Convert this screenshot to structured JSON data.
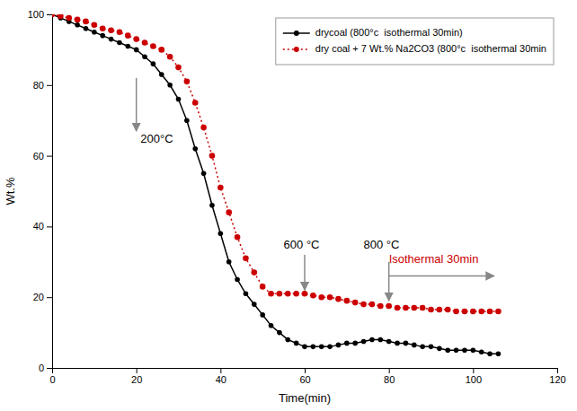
{
  "chart_data": {
    "type": "line",
    "xlabel": "Time(min)",
    "ylabel": "Wt.%",
    "xlim": [
      0,
      120
    ],
    "ylim": [
      0,
      100
    ],
    "xticks": [
      0,
      20,
      40,
      60,
      80,
      100,
      120
    ],
    "yticks": [
      0,
      20,
      40,
      60,
      80,
      100
    ],
    "grid": false,
    "legend": "upper right",
    "x": [
      0,
      2,
      4,
      6,
      8,
      10,
      12,
      14,
      16,
      18,
      20,
      22,
      24,
      26,
      28,
      30,
      32,
      34,
      36,
      38,
      40,
      42,
      44,
      46,
      48,
      50,
      52,
      54,
      56,
      58,
      60,
      62,
      64,
      66,
      68,
      70,
      72,
      74,
      76,
      78,
      80,
      82,
      84,
      86,
      88,
      90,
      92,
      94,
      96,
      98,
      100,
      102,
      104,
      106
    ],
    "series": [
      {
        "name": "drycoal (800°c  isothermal 30min)",
        "color": "#000000",
        "marker": "circle",
        "line_style": "solid",
        "values": [
          100,
          99,
          98,
          97,
          96,
          95,
          94,
          93,
          92,
          91,
          90,
          88,
          86,
          83,
          80,
          76,
          70,
          62,
          55,
          46,
          38,
          30,
          25,
          21,
          18,
          15,
          12,
          10,
          8,
          7,
          6,
          6,
          6,
          6,
          6.5,
          7,
          7,
          7.5,
          8,
          8,
          7.5,
          7,
          7,
          6.5,
          6,
          6,
          5.5,
          5,
          5,
          5,
          5,
          4.5,
          4,
          4
        ]
      },
      {
        "name": "dry coal + 7 Wt.% Na2CO3 (800°c  isothermal 30min",
        "color": "#cc0000",
        "marker": "circle",
        "line_style": "dotted",
        "values": [
          100,
          99.5,
          99,
          98.5,
          98,
          97,
          96,
          95.5,
          95,
          94,
          93,
          92,
          91,
          90,
          88,
          85,
          81,
          75,
          68,
          60,
          51,
          44,
          37,
          31,
          27,
          23,
          21,
          21,
          21,
          21,
          21,
          20.5,
          20,
          20,
          19.5,
          19,
          18.5,
          18,
          18,
          17.5,
          17.5,
          17,
          17,
          17,
          17,
          16.5,
          16.5,
          16.5,
          16,
          16,
          16,
          16,
          16,
          16
        ]
      }
    ],
    "annotations": [
      {
        "text": "200°C",
        "x": 21,
        "y": 67,
        "arrow_x": [
          20,
          20
        ],
        "arrow_y": [
          82,
          67
        ],
        "color": "#000000"
      },
      {
        "text": "600 °C",
        "x": 55,
        "y": 33,
        "arrow_x": [
          60,
          60
        ],
        "arrow_y": [
          32,
          22
        ],
        "color": "#000000"
      },
      {
        "text": "800 °C",
        "x": 74,
        "y": 33,
        "arrow_x": [
          80,
          80
        ],
        "arrow_y": [
          30,
          19
        ],
        "color": "#000000"
      },
      {
        "text": "Isothermal 30min",
        "x": 80,
        "y": 29,
        "arrow_x": [
          80,
          105
        ],
        "arrow_y": [
          26,
          26
        ],
        "color": "#cc0000"
      }
    ]
  }
}
